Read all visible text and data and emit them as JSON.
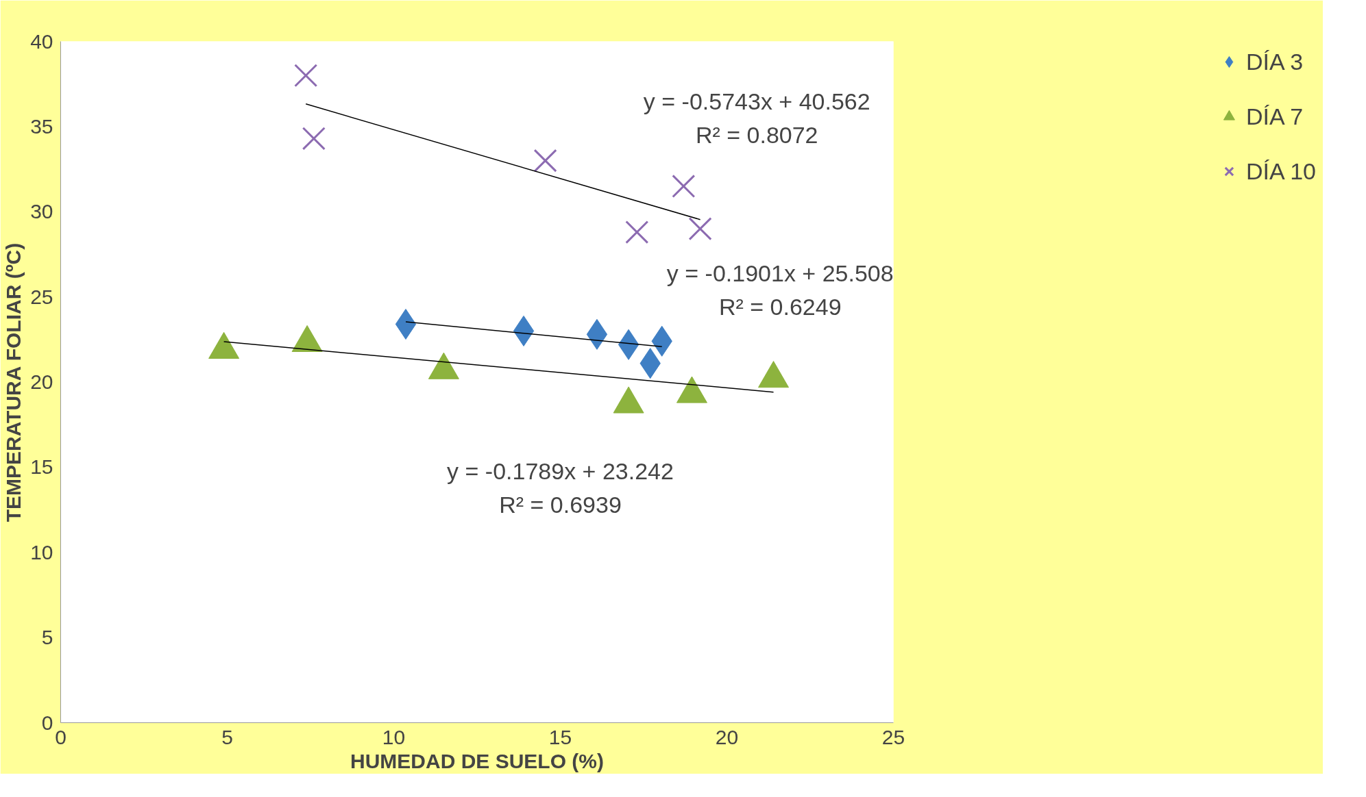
{
  "chart_data": {
    "type": "scatter",
    "xlabel": "HUMEDAD DE SUELO (%)",
    "ylabel": "TEMPERATURA FOLIAR (ºC)",
    "xlim": [
      0,
      25
    ],
    "ylim": [
      0,
      40
    ],
    "xticks": [
      0,
      5,
      10,
      15,
      20,
      25
    ],
    "yticks": [
      0,
      5,
      10,
      15,
      20,
      25,
      30,
      35,
      40
    ],
    "legend": "right",
    "series": [
      {
        "name": "DÍA 3",
        "color": "#3f7fc4",
        "marker": "diamond",
        "x": [
          10.36,
          13.9,
          16.1,
          17.05,
          17.7,
          18.05
        ],
        "values": [
          23.4,
          23.0,
          22.8,
          22.2,
          21.1,
          22.4
        ]
      },
      {
        "name": "DÍA 7",
        "color": "#8db33e",
        "marker": "triangle",
        "x": [
          4.9,
          7.4,
          11.5,
          17.05,
          18.95,
          21.4
        ],
        "values": [
          21.9,
          22.3,
          20.7,
          18.7,
          19.3,
          20.2
        ]
      },
      {
        "name": "DÍA 10",
        "color": "#8c6bb1",
        "marker": "cross",
        "x": [
          7.36,
          7.6,
          14.55,
          18.7,
          17.3,
          19.2
        ],
        "values": [
          38.0,
          34.3,
          33.0,
          31.5,
          28.8,
          29.0
        ]
      },
      {
        "type": "line",
        "color": "#000000",
        "x": [
          10.36,
          18.05
        ],
        "values": [
          23.54,
          22.08
        ]
      },
      {
        "type": "line",
        "color": "#000000",
        "x": [
          4.9,
          21.4
        ],
        "values": [
          22.37,
          19.41
        ]
      },
      {
        "type": "line",
        "color": "#000000",
        "x": [
          7.36,
          19.2
        ],
        "values": [
          36.33,
          29.54
        ]
      }
    ],
    "annotations": [
      "y = -0.5743x + 40.562\nR² = 0.8072",
      "y = -0.1901x + 25.508\nR² = 0.6249",
      "y = -0.1789x + 23.242\nR² = 0.6939"
    ]
  }
}
